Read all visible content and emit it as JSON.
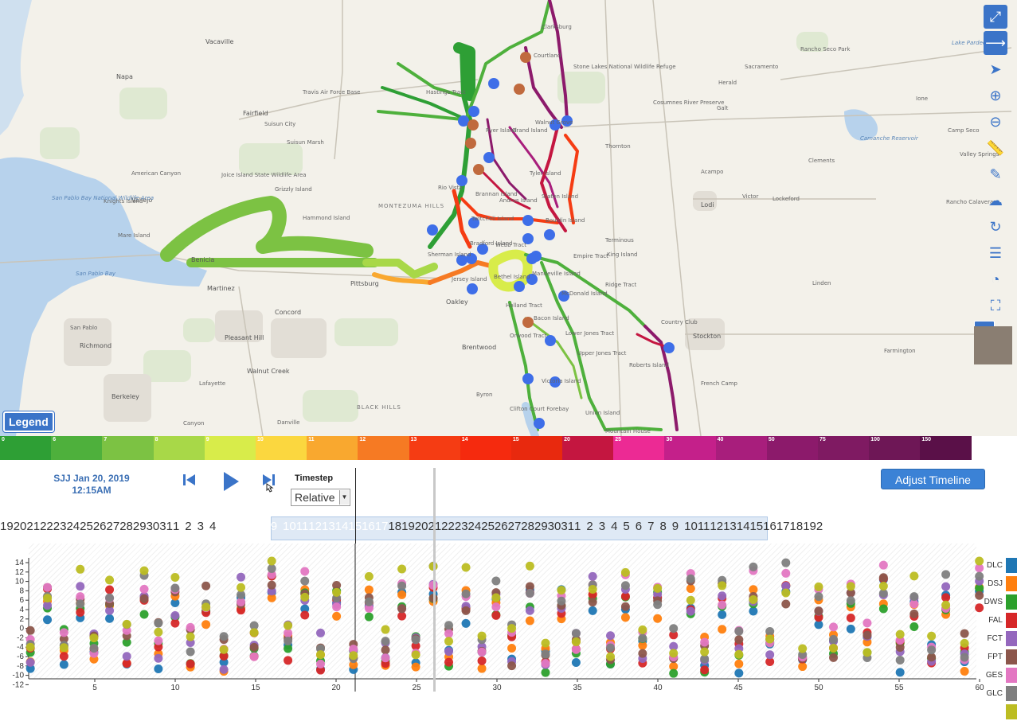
{
  "map": {
    "labels": [
      {
        "text": "Vacaville",
        "x": 258,
        "y": 48,
        "cls": "city"
      },
      {
        "text": "Napa",
        "x": 146,
        "y": 92,
        "cls": "city"
      },
      {
        "text": "Fairfield",
        "x": 305,
        "y": 138,
        "cls": "city"
      },
      {
        "text": "Suisun City",
        "x": 332,
        "y": 152,
        "cls": ""
      },
      {
        "text": "Travis Air Force Base",
        "x": 380,
        "y": 112,
        "cls": ""
      },
      {
        "text": "Vallejo",
        "x": 165,
        "y": 247,
        "cls": "city"
      },
      {
        "text": "Benicia",
        "x": 240,
        "y": 322,
        "cls": "city"
      },
      {
        "text": "Martinez",
        "x": 260,
        "y": 358,
        "cls": "city"
      },
      {
        "text": "Pittsburg",
        "x": 440,
        "y": 352,
        "cls": "city"
      },
      {
        "text": "Concord",
        "x": 345,
        "y": 388,
        "cls": "city"
      },
      {
        "text": "Oakley",
        "x": 560,
        "y": 375,
        "cls": "city"
      },
      {
        "text": "Brentwood",
        "x": 580,
        "y": 432,
        "cls": "city"
      },
      {
        "text": "Pleasant Hill",
        "x": 282,
        "y": 420,
        "cls": "city"
      },
      {
        "text": "Richmond",
        "x": 100,
        "y": 430,
        "cls": "city"
      },
      {
        "text": "San Pablo",
        "x": 88,
        "y": 408,
        "cls": ""
      },
      {
        "text": "Walnut Creek",
        "x": 310,
        "y": 462,
        "cls": "city"
      },
      {
        "text": "Berkeley",
        "x": 140,
        "y": 494,
        "cls": "city"
      },
      {
        "text": "Lafayette",
        "x": 250,
        "y": 478,
        "cls": ""
      },
      {
        "text": "Canyon",
        "x": 230,
        "y": 528,
        "cls": ""
      },
      {
        "text": "Danville",
        "x": 348,
        "y": 527,
        "cls": ""
      },
      {
        "text": "Byron",
        "x": 598,
        "y": 492,
        "cls": ""
      },
      {
        "text": "Stockton",
        "x": 870,
        "y": 418,
        "cls": "city"
      },
      {
        "text": "Lodi",
        "x": 880,
        "y": 253,
        "cls": "city"
      },
      {
        "text": "Galt",
        "x": 900,
        "y": 132,
        "cls": ""
      },
      {
        "text": "Herald",
        "x": 902,
        "y": 100,
        "cls": ""
      },
      {
        "text": "Acampo",
        "x": 880,
        "y": 212,
        "cls": ""
      },
      {
        "text": "Lockeford",
        "x": 970,
        "y": 246,
        "cls": ""
      },
      {
        "text": "Clements",
        "x": 1015,
        "y": 198,
        "cls": ""
      },
      {
        "text": "Linden",
        "x": 1020,
        "y": 352,
        "cls": ""
      },
      {
        "text": "Ione",
        "x": 1150,
        "y": 120,
        "cls": ""
      },
      {
        "text": "Camp Seco",
        "x": 1190,
        "y": 160,
        "cls": ""
      },
      {
        "text": "Valley Springs",
        "x": 1205,
        "y": 190,
        "cls": ""
      },
      {
        "text": "Rancho Calaveras",
        "x": 1188,
        "y": 250,
        "cls": ""
      },
      {
        "text": "Victor",
        "x": 932,
        "y": 243,
        "cls": ""
      },
      {
        "text": "Farmington",
        "x": 1110,
        "y": 437,
        "cls": ""
      },
      {
        "text": "French Camp",
        "x": 880,
        "y": 478,
        "cls": ""
      },
      {
        "text": "Stone Lakes National Wildlife Refuge",
        "x": 720,
        "y": 80,
        "cls": ""
      },
      {
        "text": "Cosumnes River Preserve",
        "x": 820,
        "y": 125,
        "cls": ""
      },
      {
        "text": "MONTEZUMA HILLS",
        "x": 475,
        "y": 255,
        "cls": "region"
      },
      {
        "text": "BLACK HILLS",
        "x": 448,
        "y": 508,
        "cls": "region"
      },
      {
        "text": "Rio Vista",
        "x": 550,
        "y": 232,
        "cls": ""
      },
      {
        "text": "Grizzly Island",
        "x": 345,
        "y": 234,
        "cls": ""
      },
      {
        "text": "Hastings Tract",
        "x": 535,
        "y": 112,
        "cls": ""
      },
      {
        "text": "Ryer Island",
        "x": 610,
        "y": 160,
        "cls": ""
      },
      {
        "text": "Grand Island",
        "x": 643,
        "y": 160,
        "cls": ""
      },
      {
        "text": "Tyler Island",
        "x": 665,
        "y": 214,
        "cls": ""
      },
      {
        "text": "Staten Island",
        "x": 680,
        "y": 243,
        "cls": ""
      },
      {
        "text": "Sherman Island",
        "x": 537,
        "y": 316,
        "cls": ""
      },
      {
        "text": "Twitchell Island",
        "x": 592,
        "y": 271,
        "cls": ""
      },
      {
        "text": "Webb Tract",
        "x": 622,
        "y": 304,
        "cls": ""
      },
      {
        "text": "Bradford Island",
        "x": 590,
        "y": 302,
        "cls": ""
      },
      {
        "text": "Bethel Island",
        "x": 620,
        "y": 344,
        "cls": ""
      },
      {
        "text": "Jersey Island",
        "x": 567,
        "y": 347,
        "cls": ""
      },
      {
        "text": "Holland Tract",
        "x": 635,
        "y": 380,
        "cls": ""
      },
      {
        "text": "Bacon Island",
        "x": 670,
        "y": 396,
        "cls": ""
      },
      {
        "text": "Mandeville Island",
        "x": 668,
        "y": 340,
        "cls": ""
      },
      {
        "text": "McDonald Island",
        "x": 705,
        "y": 365,
        "cls": ""
      },
      {
        "text": "Lower Jones Tract",
        "x": 710,
        "y": 415,
        "cls": ""
      },
      {
        "text": "Upper Jones Tract",
        "x": 725,
        "y": 440,
        "cls": ""
      },
      {
        "text": "Victoria Island",
        "x": 680,
        "y": 475,
        "cls": ""
      },
      {
        "text": "Union Island",
        "x": 735,
        "y": 515,
        "cls": ""
      },
      {
        "text": "Roberts Island",
        "x": 790,
        "y": 455,
        "cls": ""
      },
      {
        "text": "Ridge Tract",
        "x": 760,
        "y": 354,
        "cls": ""
      },
      {
        "text": "Empire Tract",
        "x": 720,
        "y": 318,
        "cls": ""
      },
      {
        "text": "King Island",
        "x": 762,
        "y": 316,
        "cls": ""
      },
      {
        "text": "Bouldin Island",
        "x": 685,
        "y": 273,
        "cls": ""
      },
      {
        "text": "Andrus Island",
        "x": 627,
        "y": 248,
        "cls": ""
      },
      {
        "text": "Brannan Island",
        "x": 597,
        "y": 240,
        "cls": ""
      },
      {
        "text": "Terminous",
        "x": 760,
        "y": 298,
        "cls": ""
      },
      {
        "text": "Thornton",
        "x": 760,
        "y": 180,
        "cls": ""
      },
      {
        "text": "Walnut Grove",
        "x": 672,
        "y": 150,
        "cls": ""
      },
      {
        "text": "Courtland",
        "x": 670,
        "y": 66,
        "cls": ""
      },
      {
        "text": "Clarksburg",
        "x": 680,
        "y": 30,
        "cls": ""
      },
      {
        "text": "Knights Island",
        "x": 130,
        "y": 249,
        "cls": ""
      },
      {
        "text": "Mare Island",
        "x": 148,
        "y": 292,
        "cls": ""
      },
      {
        "text": "San Pablo Bay National Wildlife Area",
        "x": 65,
        "y": 245,
        "cls": "water"
      },
      {
        "text": "San Pablo Bay",
        "x": 95,
        "y": 340,
        "cls": "water"
      },
      {
        "text": "Suisun Marsh",
        "x": 360,
        "y": 175,
        "cls": ""
      },
      {
        "text": "Hammond Island",
        "x": 380,
        "y": 270,
        "cls": ""
      },
      {
        "text": "Joice Island State Wildlife Area",
        "x": 278,
        "y": 216,
        "cls": ""
      },
      {
        "text": "American Canyon",
        "x": 165,
        "y": 214,
        "cls": ""
      },
      {
        "text": "Orwood Tract",
        "x": 640,
        "y": 418,
        "cls": ""
      },
      {
        "text": "Clifton Court Forebay",
        "x": 640,
        "y": 510,
        "cls": ""
      },
      {
        "text": "Country Club",
        "x": 830,
        "y": 401,
        "cls": ""
      },
      {
        "text": "Mountain House",
        "x": 760,
        "y": 538,
        "cls": ""
      },
      {
        "text": "Lake Pardee",
        "x": 1195,
        "y": 50,
        "cls": "water"
      },
      {
        "text": "Rancho Seco Park",
        "x": 1005,
        "y": 58,
        "cls": ""
      },
      {
        "text": "Sacramento",
        "x": 935,
        "y": 80,
        "cls": ""
      },
      {
        "text": "Camanche Reservoir",
        "x": 1080,
        "y": 170,
        "cls": "water"
      }
    ]
  },
  "toolbar": {
    "items": [
      {
        "name": "collapse-icon",
        "glyph": "⤢",
        "boxed": true
      },
      {
        "name": "arrow-right-icon",
        "glyph": "⟶",
        "boxed": true
      },
      {
        "name": "pointer-icon",
        "glyph": "➤",
        "boxed": false
      },
      {
        "name": "zoom-in-icon",
        "glyph": "⊕",
        "boxed": false
      },
      {
        "name": "zoom-out-icon",
        "glyph": "⊖",
        "boxed": false
      },
      {
        "name": "ruler-icon",
        "glyph": "📏",
        "boxed": false
      },
      {
        "name": "pencil-icon",
        "glyph": "✎",
        "boxed": false
      },
      {
        "name": "cloud-upload-icon",
        "glyph": "☁",
        "boxed": false
      },
      {
        "name": "refresh-icon",
        "glyph": "↻",
        "boxed": false
      },
      {
        "name": "layers-icon",
        "glyph": "☰",
        "boxed": false
      },
      {
        "name": "clock-icon",
        "glyph": "◔",
        "boxed": false
      },
      {
        "name": "fullscreen-icon",
        "glyph": "⛶",
        "boxed": false
      }
    ],
    "legend_label": "Legend",
    "park_label": "P"
  },
  "colorscale": {
    "segments": [
      {
        "label": "0",
        "color": "#2e9f35"
      },
      {
        "label": "6",
        "color": "#4eb03c"
      },
      {
        "label": "7",
        "color": "#7cc243"
      },
      {
        "label": "8",
        "color": "#a8d848"
      },
      {
        "label": "9",
        "color": "#d8ec4a"
      },
      {
        "label": "10",
        "color": "#fbd73f"
      },
      {
        "label": "11",
        "color": "#f9a82f"
      },
      {
        "label": "12",
        "color": "#f67a23"
      },
      {
        "label": "13",
        "color": "#f53c13"
      },
      {
        "label": "14",
        "color": "#f52a0e"
      },
      {
        "label": "15",
        "color": "#e8290e"
      },
      {
        "label": "20",
        "color": "#c41640"
      },
      {
        "label": "25",
        "color": "#ec2a94"
      },
      {
        "label": "30",
        "color": "#c4208a"
      },
      {
        "label": "40",
        "color": "#a81e7c"
      },
      {
        "label": "50",
        "color": "#8c1a6b"
      },
      {
        "label": "75",
        "color": "#7f1a62"
      },
      {
        "label": "100",
        "color": "#6e1756"
      },
      {
        "label": "150",
        "color": "#5a1048"
      }
    ],
    "tail_color": "#ffffff"
  },
  "controls": {
    "date_line1": "SJJ Jan 20, 2019",
    "date_line2": "12:15AM",
    "timestep_label": "Timestep",
    "timestep_value": "Relative",
    "adjust_label": "Adjust Timeline"
  },
  "timeline": {
    "days": [
      "19",
      "20",
      "21",
      "22",
      "23",
      "24",
      "25",
      "26",
      "27",
      "28",
      "29",
      "30",
      "31",
      "1",
      " ",
      "2",
      " ",
      "3",
      " ",
      "4",
      " ",
      "5",
      " ",
      "6",
      " ",
      "7",
      " ",
      "8",
      " ",
      "9",
      " ",
      "10",
      "11",
      "12",
      "13",
      "14",
      "15",
      "16",
      "17",
      "18",
      "19",
      "20",
      "21",
      "22",
      "23",
      "24",
      "25",
      "26",
      "27",
      "28",
      "29",
      "30",
      "31",
      "1",
      " ",
      "2",
      " ",
      "3",
      " ",
      "4",
      " ",
      "5",
      " ",
      "6",
      " ",
      "7",
      " ",
      "8",
      " ",
      "9",
      " ",
      "10",
      "11",
      "12",
      "13",
      "14",
      "15",
      "16",
      "17",
      "18",
      "19",
      "2"
    ],
    "selected": "20"
  },
  "plot": {
    "y_ticks": [
      "14",
      "12",
      "10",
      "8",
      "6",
      "4",
      "2",
      "0",
      "-2",
      "-4",
      "-6",
      "-8",
      "-10",
      "-12"
    ],
    "x_ticks": [
      "5",
      "10",
      "15",
      "20",
      "25",
      "30",
      "35",
      "40",
      "45",
      "50",
      "55",
      "60"
    ],
    "legend": [
      {
        "label": "DLC",
        "color": "#1f77b4"
      },
      {
        "label": "DSJ",
        "color": "#ff7f0e"
      },
      {
        "label": "DWS",
        "color": "#2ca02c"
      },
      {
        "label": "FAL",
        "color": "#d62728"
      },
      {
        "label": "FCT",
        "color": "#9467bd"
      },
      {
        "label": "FPT",
        "color": "#8c564b"
      },
      {
        "label": "GES",
        "color": "#e377c2"
      },
      {
        "label": "GLC",
        "color": "#7f7f7f"
      },
      {
        "label": "",
        "color": "#bcbd22"
      }
    ]
  }
}
